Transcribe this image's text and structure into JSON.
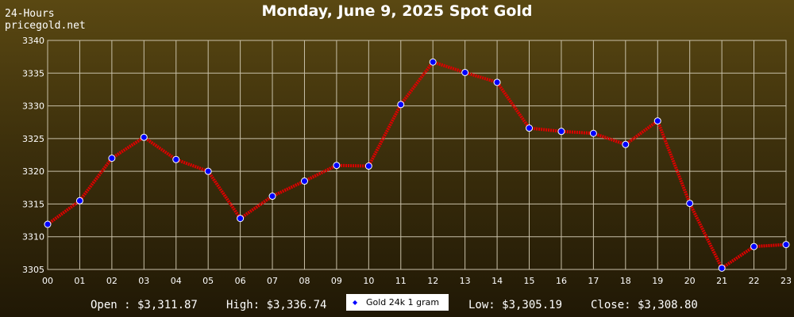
{
  "header": {
    "range_label": "24-Hours",
    "site": "pricegold.net",
    "title": "Monday, June 9, 2025 Spot Gold"
  },
  "footer": {
    "open": "Open : $3,311.87",
    "high": "High: $3,336.74",
    "legend": "Gold 24k 1 gram",
    "low": "Low: $3,305.19",
    "close": "Close: $3,308.80"
  },
  "colors": {
    "line": "#dd0000",
    "marker": "#0000ff",
    "grid": "#c8c0a8"
  },
  "chart_data": {
    "type": "line",
    "title": "Monday, June 9, 2025 Spot Gold",
    "x": [
      "00",
      "01",
      "02",
      "03",
      "04",
      "05",
      "06",
      "07",
      "08",
      "09",
      "10",
      "11",
      "12",
      "13",
      "14",
      "15",
      "16",
      "17",
      "18",
      "19",
      "20",
      "21",
      "22",
      "23"
    ],
    "series": [
      {
        "name": "Gold 24k 1 gram",
        "values": [
          3311.9,
          3315.5,
          3322.0,
          3325.2,
          3321.8,
          3320.0,
          3312.8,
          3316.2,
          3318.5,
          3320.9,
          3320.8,
          3330.2,
          3336.7,
          3335.1,
          3333.6,
          3326.6,
          3326.1,
          3325.8,
          3324.1,
          3327.7,
          3315.1,
          3305.2,
          3308.5,
          3308.8
        ]
      }
    ],
    "y_ticks": [
      "3305",
      "3310",
      "3315",
      "3320",
      "3325",
      "3330",
      "3335",
      "3340"
    ],
    "ylim": [
      3305,
      3340
    ],
    "grid": true
  }
}
